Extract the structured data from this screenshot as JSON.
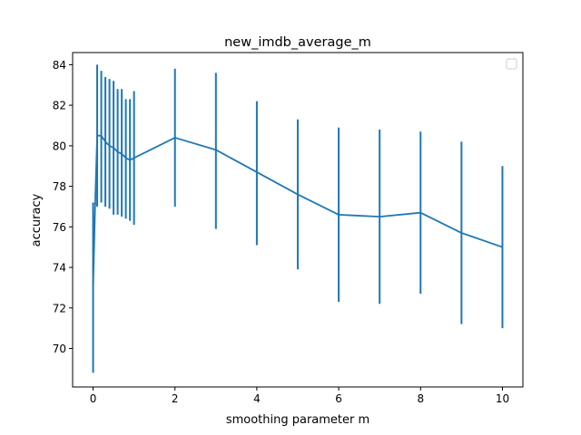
{
  "chart_data": {
    "type": "line",
    "title": "new_imdb_average_m",
    "xlabel": "smoothing parameter m",
    "ylabel": "accuracy",
    "xlim": [
      -0.5,
      10.5
    ],
    "ylim": [
      68.1,
      84.6
    ],
    "xticks": [
      0,
      2,
      4,
      6,
      8,
      10
    ],
    "yticks": [
      70,
      72,
      74,
      76,
      78,
      80,
      82,
      84
    ],
    "grid": false,
    "legend": {
      "placement": "top-right",
      "entries": []
    },
    "colors": {
      "series": "#1f77b4",
      "axes": "#000000",
      "background": "#ffffff"
    },
    "series": [
      {
        "x": [
          0,
          0.05,
          0.1,
          0.2,
          0.3,
          0.4,
          0.5,
          0.6,
          0.7,
          0.8,
          0.9,
          1.0,
          2,
          3,
          4,
          5,
          6,
          7,
          8,
          9,
          10
        ],
        "y": [
          73.0,
          77.1,
          80.5,
          80.5,
          80.2,
          80.0,
          79.9,
          79.7,
          79.6,
          79.4,
          79.3,
          79.4,
          80.4,
          79.8,
          78.7,
          77.6,
          76.6,
          76.5,
          76.7,
          75.7,
          75.0
        ],
        "ylow": [
          68.8,
          77.1,
          77.0,
          77.2,
          77.0,
          76.9,
          76.6,
          76.6,
          76.5,
          76.4,
          76.3,
          76.1,
          77.0,
          75.9,
          75.1,
          73.9,
          72.3,
          72.2,
          72.7,
          71.2,
          71.0
        ],
        "yhigh": [
          77.2,
          77.2,
          84.0,
          83.7,
          83.4,
          83.3,
          83.2,
          82.8,
          82.8,
          82.3,
          82.3,
          82.7,
          83.8,
          83.6,
          82.2,
          81.3,
          80.9,
          80.8,
          80.7,
          80.2,
          79.0
        ]
      }
    ]
  }
}
